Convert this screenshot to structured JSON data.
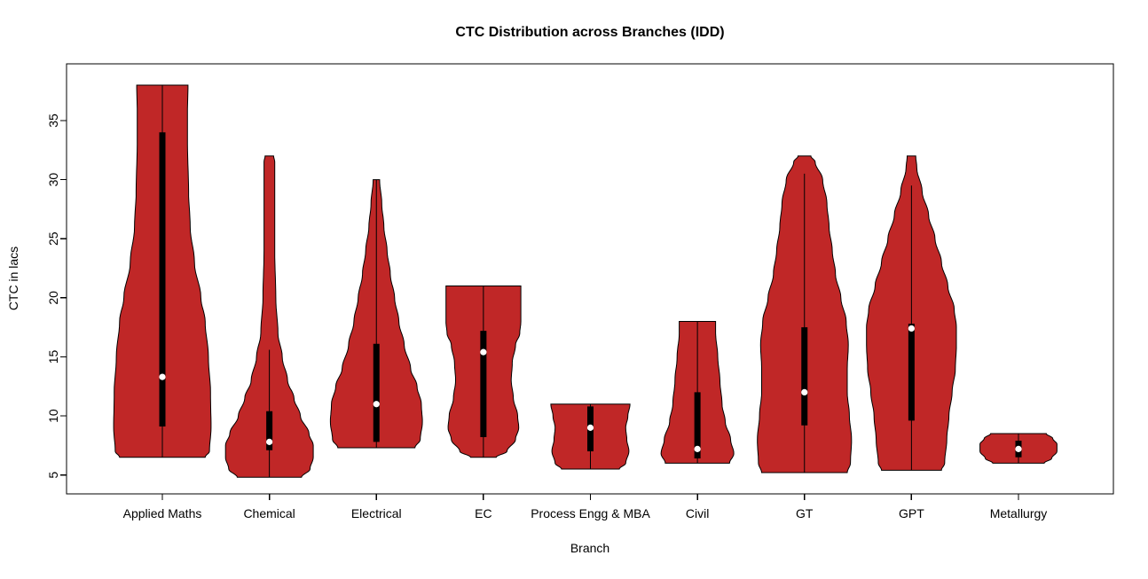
{
  "chart_data": {
    "type": "violin",
    "title": "CTC Distribution across Branches (IDD)",
    "xlabel": "Branch",
    "ylabel": "CTC in lacs",
    "ylim": [
      3.4,
      39.8
    ],
    "y_ticks": [
      5,
      10,
      15,
      20,
      25,
      30,
      35
    ],
    "categories": [
      "Applied Maths",
      "Chemical",
      "Electrical",
      "EC",
      "Process Engg & MBA",
      "Civil",
      "GT",
      "GPT",
      "Metallurgy"
    ],
    "legend": "none",
    "grid": false,
    "colors": {
      "violin_fill": "#C02727",
      "outline": "#000000",
      "box": "#000000",
      "median_dot": "#FFFFFF",
      "background": "#FFFFFF"
    },
    "violins": [
      {
        "name": "Applied Maths",
        "min": 6.5,
        "max": 38,
        "q1": 9.1,
        "q3": 34,
        "median": 13.3,
        "whisker_low": 6.5,
        "whisker_high": 38,
        "profile": [
          [
            6.5,
            0.4
          ],
          [
            7,
            0.44
          ],
          [
            9,
            0.455
          ],
          [
            12,
            0.45
          ],
          [
            15,
            0.43
          ],
          [
            18,
            0.4
          ],
          [
            20,
            0.36
          ],
          [
            23,
            0.3
          ],
          [
            26,
            0.26
          ],
          [
            29,
            0.245
          ],
          [
            33,
            0.235
          ],
          [
            36,
            0.235
          ],
          [
            38,
            0.24
          ]
        ]
      },
      {
        "name": "Chemical",
        "min": 4.8,
        "max": 32,
        "q1": 7.1,
        "q3": 10.4,
        "median": 7.8,
        "whisker_low": 4.8,
        "whisker_high": 15.6,
        "profile": [
          [
            4.8,
            0.3
          ],
          [
            5.5,
            0.38
          ],
          [
            6.5,
            0.41
          ],
          [
            7.5,
            0.41
          ],
          [
            8.5,
            0.37
          ],
          [
            10,
            0.29
          ],
          [
            11.5,
            0.23
          ],
          [
            13,
            0.17
          ],
          [
            15,
            0.12
          ],
          [
            17,
            0.08
          ],
          [
            20,
            0.06
          ],
          [
            24,
            0.05
          ],
          [
            28,
            0.05
          ],
          [
            31.5,
            0.05
          ],
          [
            32,
            0.04
          ]
        ]
      },
      {
        "name": "Electrical",
        "min": 7.3,
        "max": 30,
        "q1": 7.8,
        "q3": 16.1,
        "median": 11,
        "whisker_low": 7.3,
        "whisker_high": 30,
        "profile": [
          [
            7.3,
            0.36
          ],
          [
            8,
            0.41
          ],
          [
            9.5,
            0.43
          ],
          [
            11,
            0.42
          ],
          [
            12.5,
            0.38
          ],
          [
            14,
            0.32
          ],
          [
            16,
            0.26
          ],
          [
            18,
            0.21
          ],
          [
            20,
            0.17
          ],
          [
            22,
            0.13
          ],
          [
            24,
            0.1
          ],
          [
            26,
            0.07
          ],
          [
            28,
            0.05
          ],
          [
            30,
            0.03
          ]
        ]
      },
      {
        "name": "EC",
        "min": 6.5,
        "max": 21,
        "q1": 8.2,
        "q3": 17.2,
        "median": 15.4,
        "whisker_low": 6.5,
        "whisker_high": 21,
        "profile": [
          [
            6.5,
            0.12
          ],
          [
            7,
            0.22
          ],
          [
            8,
            0.3
          ],
          [
            9,
            0.33
          ],
          [
            10,
            0.32
          ],
          [
            11.5,
            0.28
          ],
          [
            13,
            0.26
          ],
          [
            14.5,
            0.27
          ],
          [
            16,
            0.3
          ],
          [
            17,
            0.34
          ],
          [
            18,
            0.35
          ],
          [
            19.5,
            0.35
          ],
          [
            21,
            0.35
          ]
        ]
      },
      {
        "name": "Process Engg & MBA",
        "min": 5.5,
        "max": 11,
        "q1": 7.0,
        "q3": 10.8,
        "median": 9.0,
        "whisker_low": 5.5,
        "whisker_high": 11,
        "profile": [
          [
            5.5,
            0.27
          ],
          [
            6,
            0.33
          ],
          [
            7,
            0.36
          ],
          [
            8,
            0.34
          ],
          [
            9,
            0.33
          ],
          [
            10,
            0.35
          ],
          [
            11,
            0.37
          ]
        ]
      },
      {
        "name": "Civil",
        "min": 6,
        "max": 18,
        "q1": 6.4,
        "q3": 12.0,
        "median": 7.2,
        "whisker_low": 6,
        "whisker_high": 18,
        "profile": [
          [
            6,
            0.3
          ],
          [
            6.8,
            0.34
          ],
          [
            8,
            0.31
          ],
          [
            9.5,
            0.26
          ],
          [
            11,
            0.23
          ],
          [
            13,
            0.21
          ],
          [
            15,
            0.19
          ],
          [
            17,
            0.17
          ],
          [
            18,
            0.17
          ]
        ]
      },
      {
        "name": "GT",
        "min": 5.2,
        "max": 32,
        "q1": 9.2,
        "q3": 17.5,
        "median": 12.0,
        "whisker_low": 5.2,
        "whisker_high": 30.5,
        "profile": [
          [
            5.2,
            0.4
          ],
          [
            6,
            0.43
          ],
          [
            8,
            0.44
          ],
          [
            10,
            0.42
          ],
          [
            12,
            0.4
          ],
          [
            14,
            0.4
          ],
          [
            16,
            0.41
          ],
          [
            18,
            0.39
          ],
          [
            20,
            0.34
          ],
          [
            22,
            0.29
          ],
          [
            24,
            0.26
          ],
          [
            26,
            0.23
          ],
          [
            28,
            0.21
          ],
          [
            30,
            0.17
          ],
          [
            31.5,
            0.1
          ],
          [
            32,
            0.06
          ]
        ]
      },
      {
        "name": "GPT",
        "min": 5.4,
        "max": 32,
        "q1": 9.6,
        "q3": 17.8,
        "median": 17.4,
        "whisker_low": 5.4,
        "whisker_high": 29.5,
        "profile": [
          [
            5.4,
            0.28
          ],
          [
            6,
            0.31
          ],
          [
            8,
            0.33
          ],
          [
            10,
            0.35
          ],
          [
            12,
            0.38
          ],
          [
            14,
            0.41
          ],
          [
            16,
            0.42
          ],
          [
            17.5,
            0.42
          ],
          [
            19,
            0.4
          ],
          [
            21,
            0.34
          ],
          [
            23,
            0.28
          ],
          [
            25,
            0.22
          ],
          [
            27,
            0.16
          ],
          [
            29,
            0.1
          ],
          [
            31,
            0.05
          ],
          [
            32,
            0.04
          ]
        ]
      },
      {
        "name": "Metallurgy",
        "min": 6,
        "max": 8.5,
        "q1": 6.5,
        "q3": 7.9,
        "median": 7.2,
        "whisker_low": 6,
        "whisker_high": 8.5,
        "profile": [
          [
            6,
            0.24
          ],
          [
            6.4,
            0.31
          ],
          [
            7,
            0.36
          ],
          [
            7.6,
            0.36
          ],
          [
            8.1,
            0.32
          ],
          [
            8.5,
            0.26
          ]
        ]
      }
    ]
  }
}
